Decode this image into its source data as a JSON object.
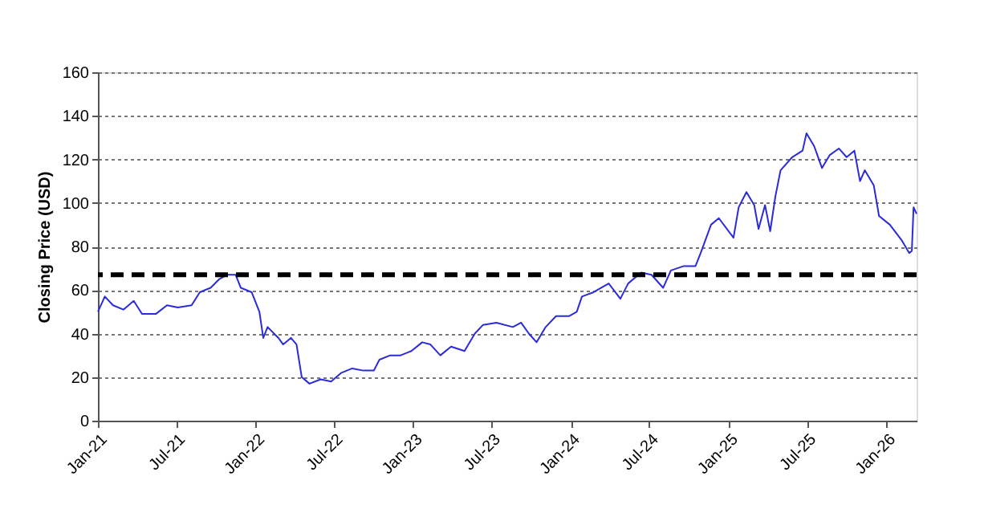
{
  "chart_data": {
    "type": "line",
    "ylabel": "Closing Price (USD)",
    "x": [
      "2021-01-01",
      "2021-01-17",
      "2021-02-05",
      "2021-03-01",
      "2021-03-25",
      "2021-04-13",
      "2021-05-15",
      "2021-06-10",
      "2021-07-05",
      "2021-08-06",
      "2021-08-25",
      "2021-09-19",
      "2021-10-09",
      "2021-10-27",
      "2021-11-16",
      "2021-11-28",
      "2021-12-23",
      "2022-01-10",
      "2022-01-19",
      "2022-01-29",
      "2022-02-23",
      "2022-03-06",
      "2022-03-24",
      "2022-04-06",
      "2022-04-18",
      "2022-05-06",
      "2022-06-01",
      "2022-06-25",
      "2022-07-19",
      "2022-08-13",
      "2022-09-08",
      "2022-10-02",
      "2022-10-15",
      "2022-11-09",
      "2022-12-03",
      "2022-12-28",
      "2023-01-22",
      "2023-02-10",
      "2023-03-05",
      "2023-03-30",
      "2023-04-30",
      "2023-05-24",
      "2023-06-12",
      "2023-07-13",
      "2023-08-20",
      "2023-09-08",
      "2023-09-26",
      "2023-10-14",
      "2023-11-04",
      "2023-11-28",
      "2023-12-28",
      "2024-01-15",
      "2024-01-27",
      "2024-02-23",
      "2024-03-29",
      "2024-04-25",
      "2024-05-13",
      "2024-06-12",
      "2024-07-06",
      "2024-08-02",
      "2024-08-20",
      "2024-09-19",
      "2024-10-16",
      "2024-10-28",
      "2024-11-21",
      "2024-12-09",
      "2025-01-12",
      "2025-01-24",
      "2025-02-11",
      "2025-03-01",
      "2025-03-11",
      "2025-03-26",
      "2025-04-07",
      "2025-04-19",
      "2025-05-01",
      "2025-05-28",
      "2025-06-21",
      "2025-06-30",
      "2025-07-18",
      "2025-08-05",
      "2025-08-23",
      "2025-09-13",
      "2025-10-01",
      "2025-10-19",
      "2025-11-01",
      "2025-11-12",
      "2025-12-03",
      "2025-12-15",
      "2026-01-09",
      "2026-02-05",
      "2026-02-23",
      "2026-03-01",
      "2026-03-05",
      "2026-03-12"
    ],
    "series": [
      {
        "color": "#2b2bd9",
        "values": [
          50,
          57,
          53,
          51,
          55,
          49,
          49,
          53,
          52,
          53,
          59,
          61,
          65,
          67,
          67,
          61,
          59,
          50,
          38,
          43,
          38,
          35,
          38,
          35,
          20,
          17,
          19,
          18,
          22,
          24,
          23,
          23,
          28,
          30,
          30,
          32,
          36,
          35,
          30,
          34,
          32,
          40,
          44,
          45,
          43,
          45,
          40,
          36,
          43,
          48,
          48,
          50,
          57,
          59,
          63,
          56,
          63,
          68,
          67,
          61,
          69,
          71,
          71,
          77,
          90,
          93,
          84,
          98,
          105,
          99,
          88,
          99,
          87,
          103,
          115,
          121,
          124,
          132,
          126,
          116,
          122,
          125,
          121,
          124,
          110,
          115,
          108,
          94,
          90,
          83,
          77,
          78,
          98,
          95
        ]
      }
    ],
    "xlim": [
      "2021-01-01",
      "2026-03-12"
    ],
    "xticks": [
      {
        "value": "2021-01-01",
        "label": "Jan-21"
      },
      {
        "value": "2021-07-01",
        "label": "Jul-21"
      },
      {
        "value": "2022-01-01",
        "label": "Jan-22"
      },
      {
        "value": "2022-07-01",
        "label": "Jul-22"
      },
      {
        "value": "2023-01-01",
        "label": "Jan-23"
      },
      {
        "value": "2023-07-01",
        "label": "Jul-23"
      },
      {
        "value": "2024-01-01",
        "label": "Jan-24"
      },
      {
        "value": "2024-07-01",
        "label": "Jul-24"
      },
      {
        "value": "2025-01-01",
        "label": "Jan-25"
      },
      {
        "value": "2025-07-01",
        "label": "Jul-25"
      },
      {
        "value": "2026-01-01",
        "label": "Jan-26"
      }
    ],
    "ylim": [
      0,
      160
    ],
    "yticks": [
      0,
      20,
      40,
      60,
      80,
      100,
      120,
      140,
      160
    ],
    "grid": "y",
    "line_style": "solid",
    "ref_lines": [
      {
        "axis": "y",
        "value": 67,
        "color": "#000000",
        "line_style": "dashed"
      }
    ]
  }
}
